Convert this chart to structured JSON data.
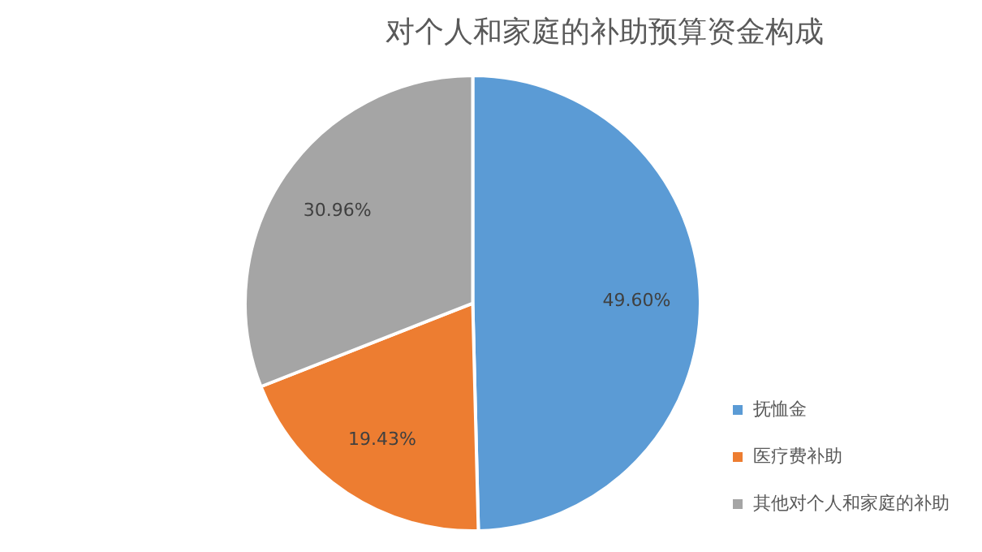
{
  "chart_data": {
    "type": "pie",
    "title": "对个人和家庭的补助预算资金构成",
    "categories": [
      "抚恤金",
      "医疗费补助",
      "其他对个人和家庭的补助"
    ],
    "values": [
      49.6,
      19.43,
      30.96
    ],
    "colors": [
      "#5b9bd5",
      "#ed7d31",
      "#a5a5a5"
    ],
    "value_labels": [
      "49.60%",
      "19.43%",
      "30.96%"
    ],
    "legend": "bottom right"
  }
}
